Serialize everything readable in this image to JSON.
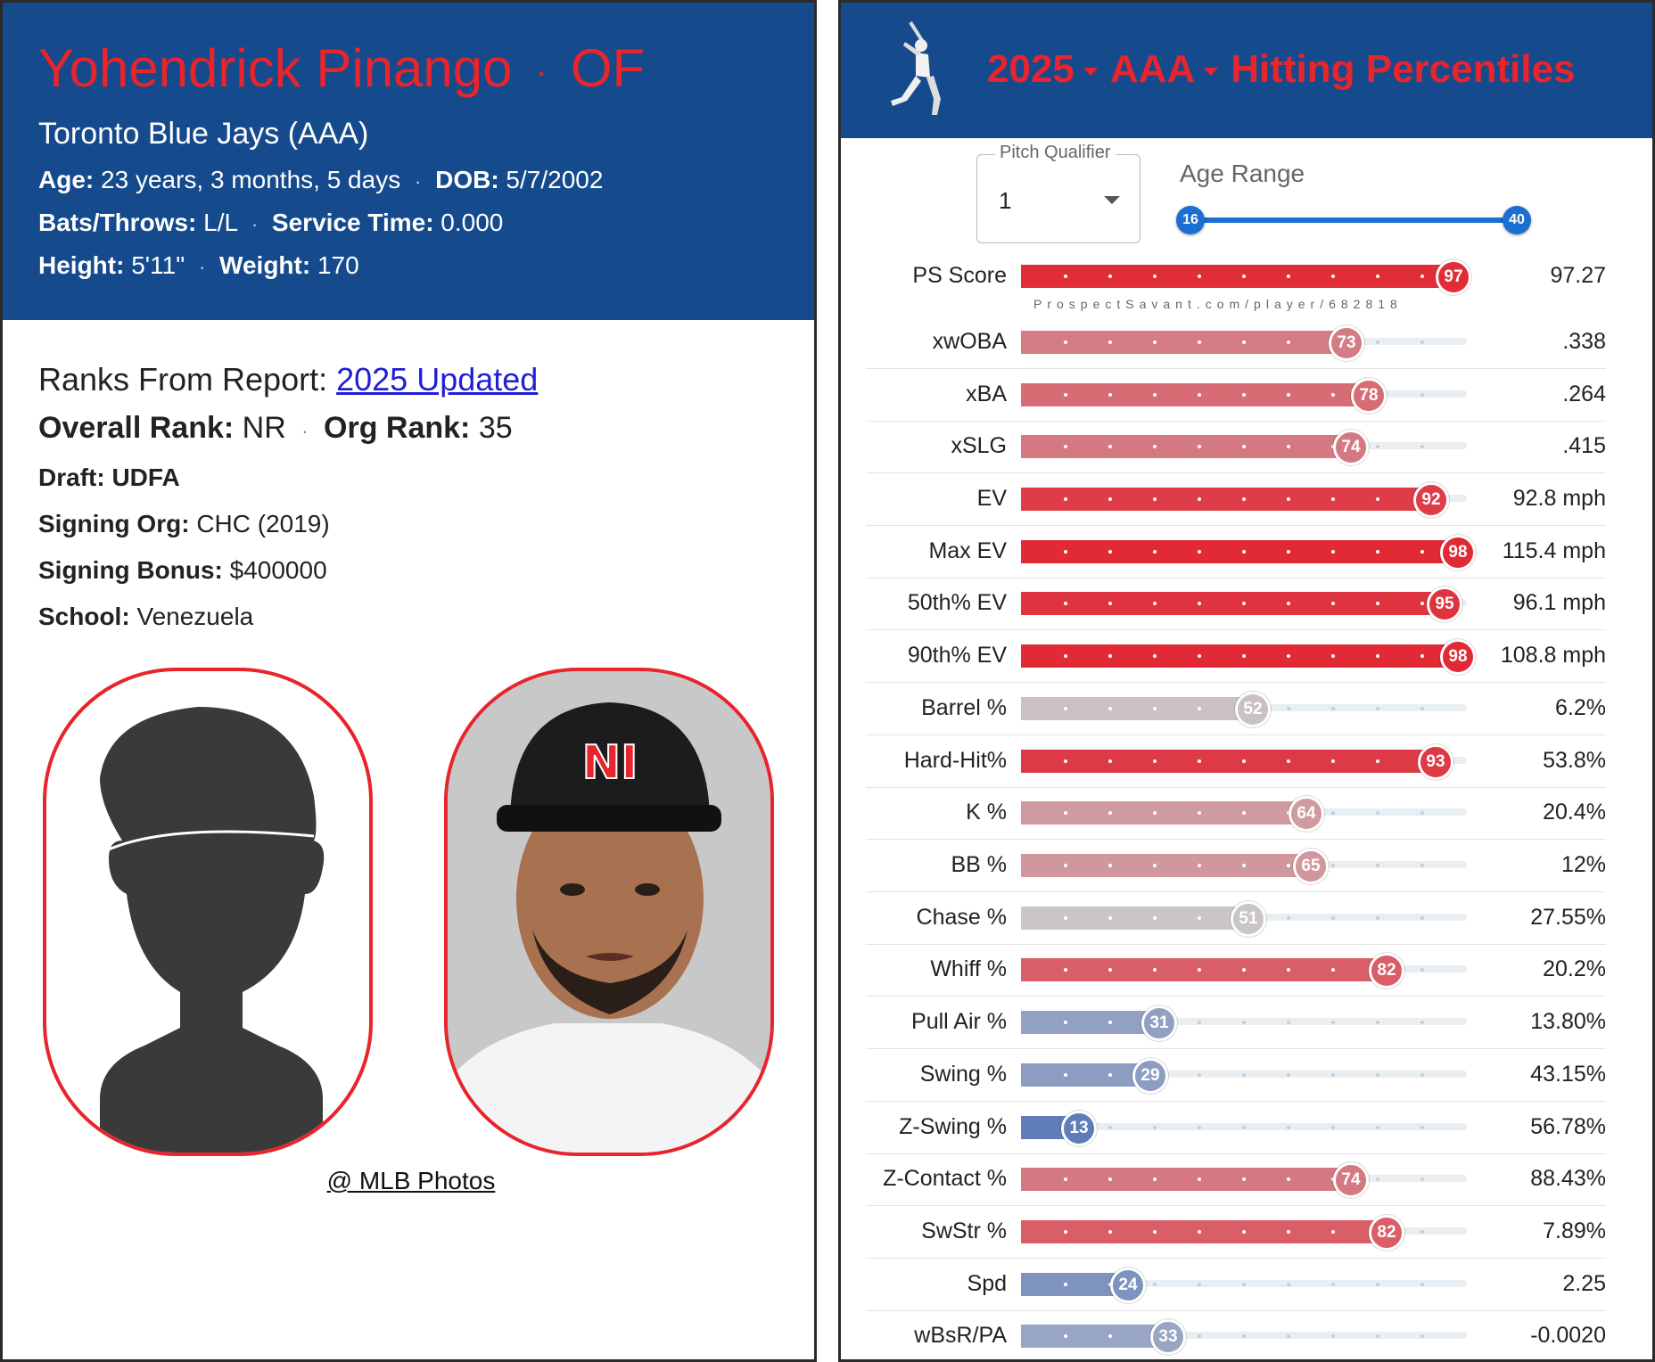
{
  "player": {
    "name": "Yohendrick Pinango",
    "position": "OF",
    "team": "Toronto Blue Jays (AAA)",
    "age_label": "Age:",
    "age": "23 years, 3 months, 5 days",
    "dob_label": "DOB:",
    "dob": "5/7/2002",
    "bats_label": "Bats/Throws:",
    "bats": "L/L",
    "service_label": "Service Time:",
    "service": "0.000",
    "height_label": "Height:",
    "height": "5'11\"",
    "weight_label": "Weight:",
    "weight": "170"
  },
  "ranks": {
    "prefix": "Ranks From Report:",
    "link": "2025 Updated",
    "overall_label": "Overall Rank:",
    "overall": "NR",
    "org_label": "Org Rank:",
    "org": "35",
    "draft_label": "Draft:",
    "draft": "UDFA",
    "signing_org_label": "Signing Org:",
    "signing_org": "CHC (2019)",
    "bonus_label": "Signing Bonus:",
    "bonus": "$400000",
    "school_label": "School:",
    "school": "Venezuela"
  },
  "photo_credit": "@ MLB Photos",
  "percentiles": {
    "year": "2025",
    "level": "AAA",
    "title": "Hitting Percentiles",
    "pitch_qualifier_label": "Pitch Qualifier",
    "pitch_qualifier": "1",
    "age_range_label": "Age Range",
    "age_min": "16",
    "age_max": "40",
    "watermark": "ProspectSavant.com/player/682818",
    "metrics": [
      {
        "label": "PS Score",
        "pct": 97,
        "value": "97.27"
      },
      {
        "label": "xwOBA",
        "pct": 73,
        "value": ".338"
      },
      {
        "label": "xBA",
        "pct": 78,
        "value": ".264"
      },
      {
        "label": "xSLG",
        "pct": 74,
        "value": ".415"
      },
      {
        "label": "EV",
        "pct": 92,
        "value": "92.8 mph"
      },
      {
        "label": "Max EV",
        "pct": 98,
        "value": "115.4 mph"
      },
      {
        "label": "50th% EV",
        "pct": 95,
        "value": "96.1 mph"
      },
      {
        "label": "90th% EV",
        "pct": 98,
        "value": "108.8 mph"
      },
      {
        "label": "Barrel %",
        "pct": 52,
        "value": "6.2%"
      },
      {
        "label": "Hard-Hit%",
        "pct": 93,
        "value": "53.8%"
      },
      {
        "label": "K %",
        "pct": 64,
        "value": "20.4%"
      },
      {
        "label": "BB %",
        "pct": 65,
        "value": "12%"
      },
      {
        "label": "Chase %",
        "pct": 51,
        "value": "27.55%"
      },
      {
        "label": "Whiff %",
        "pct": 82,
        "value": "20.2%"
      },
      {
        "label": "Pull Air %",
        "pct": 31,
        "value": "13.80%"
      },
      {
        "label": "Swing %",
        "pct": 29,
        "value": "43.15%"
      },
      {
        "label": "Z-Swing %",
        "pct": 13,
        "value": "56.78%"
      },
      {
        "label": "Z-Contact %",
        "pct": 74,
        "value": "88.43%"
      },
      {
        "label": "SwStr %",
        "pct": 82,
        "value": "7.89%"
      },
      {
        "label": "Spd",
        "pct": 24,
        "value": "2.25"
      },
      {
        "label": "wBsR/PA",
        "pct": 33,
        "value": "-0.0020"
      }
    ]
  },
  "colors": {
    "header_blue": "#154a8c",
    "accent_red": "#e8242d",
    "slider_blue": "#1a6fd1"
  }
}
